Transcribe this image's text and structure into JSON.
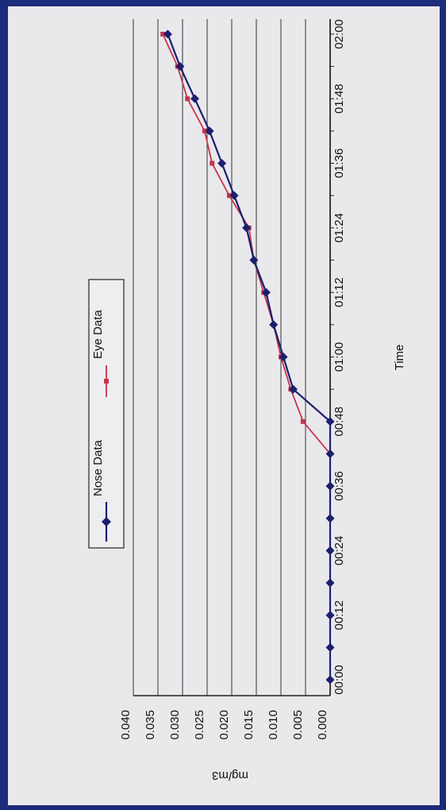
{
  "chart_data": {
    "type": "line",
    "title": "",
    "xlabel": "Time",
    "ylabel": "mg/m3",
    "x": [
      "00:00",
      "00:06",
      "00:12",
      "00:18",
      "00:24",
      "00:30",
      "00:36",
      "00:42",
      "00:48",
      "00:54",
      "01:00",
      "01:06",
      "01:12",
      "01:18",
      "01:24",
      "01:30",
      "01:36",
      "01:42",
      "01:48",
      "01:54",
      "02:00"
    ],
    "x_tick_labels": [
      "00:00",
      "00:12",
      "00:24",
      "00:36",
      "00:48",
      "01:00",
      "01:12",
      "01:24",
      "01:36",
      "01:48",
      "02:00"
    ],
    "y_tick_labels": [
      "0.000",
      "0.005",
      "0.010",
      "0.015",
      "0.020",
      "0.025",
      "0.030",
      "0.035",
      "0.040"
    ],
    "ylim": [
      0,
      0.04
    ],
    "grid": true,
    "legend_position": "top-right",
    "series": [
      {
        "name": "Nose Data",
        "color": "#1a1f6e",
        "marker": "diamond",
        "values": [
          0,
          0,
          0,
          0,
          0,
          0,
          0,
          0,
          0,
          0.0075,
          0.0095,
          0.0115,
          0.013,
          0.0155,
          0.017,
          0.0195,
          0.022,
          0.0245,
          0.0275,
          0.0305,
          0.033
        ]
      },
      {
        "name": "Eye Data",
        "color": "#c8344c",
        "marker": "square",
        "values": [
          0,
          0,
          0,
          0,
          0,
          0,
          0,
          0,
          0.0055,
          0.008,
          0.01,
          0.0115,
          0.0135,
          0.0155,
          0.0165,
          0.0205,
          0.024,
          0.0255,
          0.029,
          0.031,
          0.034
        ]
      }
    ]
  }
}
